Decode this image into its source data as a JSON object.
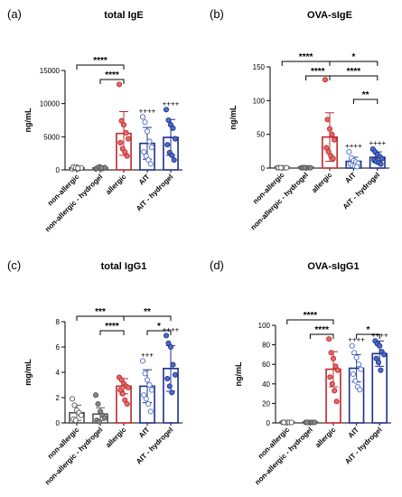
{
  "colors": {
    "gray_fill": "#7f7f7f",
    "red": "#c0282d",
    "blue": "#1f2f8c",
    "light_blue": "#4a6fc7",
    "black": "#000000",
    "bracket": "#000000"
  },
  "chart_data": [
    {
      "type": "bar",
      "panel_label": "(a)",
      "title": "total IgE",
      "xlabel": "",
      "ylabel": "ng/mL",
      "ylim": [
        0,
        15000
      ],
      "yticks": [
        0,
        5000,
        10000,
        15000
      ],
      "categories": [
        "non-allergic",
        "non-allergic - hydrogel",
        "allergic",
        "AIT",
        "AIT - hydrogel"
      ],
      "series": [
        {
          "values": [
            300,
            300,
            5500,
            4000,
            4900
          ],
          "errors": [
            150,
            150,
            3300,
            2400,
            2700
          ],
          "points": [
            [
              150,
              250,
              400,
              200,
              300,
              450,
              350,
              250
            ],
            [
              150,
              300,
              400,
              200,
              350,
              250,
              450,
              300
            ],
            [
              12900,
              7400,
              6800,
              5600,
              4700,
              4100,
              3200,
              2700,
              2100
            ],
            [
              8000,
              7200,
              5800,
              4300,
              3400,
              2700,
              2100,
              1500,
              900
            ],
            [
              9100,
              7500,
              6800,
              6300,
              4700,
              3800,
              2600,
              2200,
              1500
            ]
          ]
        }
      ],
      "point_labels": [
        "",
        "",
        "",
        "++++",
        "++++"
      ],
      "significance": [
        {
          "from": 0,
          "to": 2,
          "label": "****",
          "level": 1
        },
        {
          "from": 1,
          "to": 2,
          "label": "****",
          "level": 0
        }
      ]
    },
    {
      "type": "bar",
      "panel_label": "(b)",
      "title": "OVA-sIgE",
      "xlabel": "",
      "ylabel": "ng/mL",
      "ylim": [
        0,
        150
      ],
      "yticks": [
        0,
        50,
        100,
        150
      ],
      "categories": [
        "non-allergic",
        "non-allergic - hydrogel",
        "allergic",
        "AIT",
        "AIT - hydrogel"
      ],
      "series": [
        {
          "values": [
            0.5,
            0.5,
            46,
            10,
            16
          ],
          "errors": [
            0.3,
            0.3,
            36,
            6,
            8
          ],
          "points": [
            [
              0.5,
              0.5,
              0.5,
              0.5,
              0.5,
              0.5,
              0.5
            ],
            [
              0.5,
              0.5,
              0.5,
              0.5,
              0.5,
              0.5,
              0.5
            ],
            [
              131,
              72,
              58,
              50,
              42,
              30,
              24,
              18,
              14
            ],
            [
              24,
              15,
              11,
              9,
              7,
              6,
              4,
              3,
              2
            ],
            [
              28,
              24,
              20,
              17,
              14,
              12,
              10,
              8,
              6
            ]
          ]
        }
      ],
      "point_labels": [
        "",
        "",
        "",
        "++++",
        "++++"
      ],
      "significance": [
        {
          "from": 0,
          "to": 2,
          "label": "****",
          "level": 1
        },
        {
          "from": 1,
          "to": 2,
          "label": "****",
          "level": 0
        },
        {
          "from": 2,
          "to": 4,
          "label": "****",
          "level": 0
        },
        {
          "from": 2,
          "to": 4,
          "label": "*",
          "level": 1
        },
        {
          "from": 3,
          "to": 4,
          "label": "**",
          "level": -1
        }
      ]
    },
    {
      "type": "bar",
      "panel_label": "(c)",
      "title": "total IgG1",
      "xlabel": "",
      "ylabel": "mg/mL",
      "ylim": [
        0,
        8
      ],
      "yticks": [
        0,
        2,
        4,
        6,
        8
      ],
      "categories": [
        "non-allergic",
        "non-allergic - hydrogel",
        "allergic",
        "AIT",
        "AIT - hydrogel"
      ],
      "series": [
        {
          "values": [
            0.8,
            0.7,
            2.9,
            2.9,
            4.3
          ],
          "errors": [
            0.6,
            0.5,
            0.6,
            1.3,
            1.8
          ],
          "points": [
            [
              1.9,
              1.4,
              1.0,
              0.8,
              0.6,
              0.3,
              0.2
            ],
            [
              2.2,
              1.5,
              0.9,
              0.6,
              0.4,
              0.2,
              0.1
            ],
            [
              3.6,
              3.4,
              3.1,
              2.9,
              2.8,
              2.6,
              2.3,
              1.8,
              1.5
            ],
            [
              4.9,
              3.9,
              3.4,
              3.0,
              2.6,
              2.2,
              1.9,
              1.5,
              0.9
            ],
            [
              6.9,
              6.3,
              6.0,
              4.6,
              3.8,
              3.5,
              2.9,
              2.4
            ]
          ]
        }
      ],
      "point_labels": [
        "",
        "",
        "",
        "+++",
        "++++"
      ],
      "significance": [
        {
          "from": 0,
          "to": 2,
          "label": "***",
          "level": 1
        },
        {
          "from": 1,
          "to": 2,
          "label": "****",
          "level": 0
        },
        {
          "from": 2,
          "to": 4,
          "label": "**",
          "level": 1
        },
        {
          "from": 3,
          "to": 4,
          "label": "*",
          "level": 0
        }
      ]
    },
    {
      "type": "bar",
      "panel_label": "(d)",
      "title": "OVA-sIgG1",
      "xlabel": "",
      "ylabel": "ng/mL",
      "ylim": [
        0,
        100
      ],
      "yticks": [
        0,
        20,
        40,
        60,
        80,
        100
      ],
      "categories": [
        "non-allergic",
        "non-allergic - hydrogel",
        "allergic",
        "AIT",
        "AIT - hydrogel"
      ],
      "series": [
        {
          "values": [
            0.5,
            0.5,
            55,
            56,
            71
          ],
          "errors": [
            0.3,
            0.3,
            18,
            14,
            13
          ],
          "points": [
            [
              0.5,
              0.5,
              0.5,
              0.5,
              0.5,
              0.5
            ],
            [
              0.5,
              0.5,
              0.5,
              0.5,
              0.5,
              0.5
            ],
            [
              86,
              72,
              66,
              58,
              54,
              47,
              40,
              33,
              22
            ],
            [
              79,
              72,
              67,
              60,
              55,
              50,
              43,
              37,
              34
            ],
            [
              84,
              81,
              79,
              73,
              70,
              66,
              62,
              54
            ]
          ]
        }
      ],
      "point_labels": [
        "",
        "",
        "",
        "++++",
        "++++"
      ],
      "significance": [
        {
          "from": 0,
          "to": 2,
          "label": "****",
          "level": 1
        },
        {
          "from": 1,
          "to": 2,
          "label": "****",
          "level": 0
        },
        {
          "from": 3,
          "to": 4,
          "label": "*",
          "level": 0
        }
      ]
    }
  ]
}
